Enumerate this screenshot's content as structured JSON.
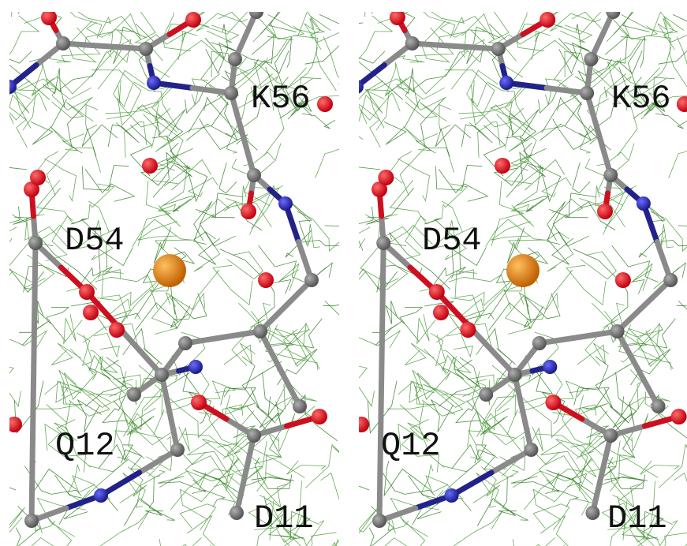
{
  "panels": [
    {
      "labels": [
        "K56",
        "D54",
        "Q12",
        "D11"
      ]
    },
    {
      "labels": [
        "K56",
        "D54",
        "Q12",
        "D11"
      ]
    }
  ]
}
